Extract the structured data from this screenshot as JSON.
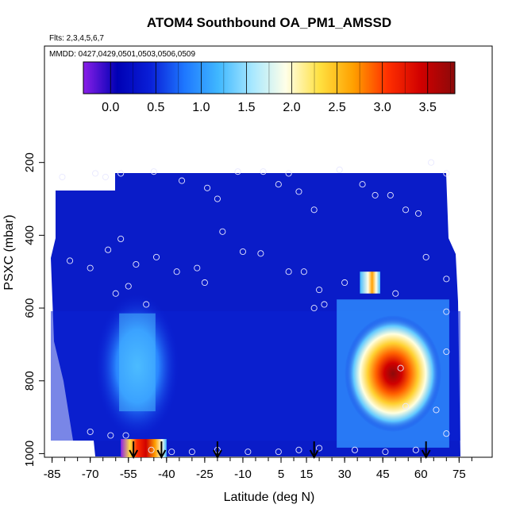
{
  "chart_data": {
    "type": "heatmap",
    "title": "ATOM4 Southbound OA_PM1_AMSSD",
    "flights_label": "Flts: 2,3,4,5,6,7",
    "mmdd_label": "MMDD: 0427,0429,0501,0503,0506,0509",
    "xlabel": "Latitude (deg N)",
    "ylabel": "PSXC (mbar)",
    "x_ticks": [
      "-85",
      "-70",
      "-55",
      "-40",
      "-25",
      "-10",
      "5",
      "15",
      "30",
      "45",
      "60",
      "75"
    ],
    "x_tick_values": [
      -85,
      -70,
      -55,
      -40,
      -25,
      -10,
      5,
      15,
      30,
      45,
      60,
      75
    ],
    "y_ticks": [
      "200",
      "400",
      "600",
      "800",
      "1000"
    ],
    "y_tick_values": [
      200,
      400,
      600,
      800,
      1000
    ],
    "xlim": [
      -88,
      88
    ],
    "ylim": [
      1010,
      -120
    ],
    "y_reversed": true,
    "colorbar": {
      "ticks": [
        "0.0",
        "0.5",
        "1.0",
        "1.5",
        "2.0",
        "2.5",
        "3.0",
        "3.5"
      ],
      "tick_values": [
        0,
        0.5,
        1,
        1.5,
        2,
        2.5,
        3,
        3.5
      ],
      "range": [
        -0.3,
        3.8
      ],
      "colors": [
        "#8a1fe8",
        "#0000b4",
        "#0a20d8",
        "#1e78ff",
        "#40b8ff",
        "#a8e8ff",
        "#ffffe8",
        "#ffe040",
        "#ffa000",
        "#ff3000",
        "#d00000",
        "#8b0a0a"
      ]
    },
    "field": [
      {
        "name": "background",
        "value": 0.05
      },
      {
        "name": "southern-low-level-feature",
        "lat_range": [
          -68,
          -35
        ],
        "p_range": [
          560,
          960
        ],
        "peak": 1.25
      },
      {
        "name": "northern-low-level-plume",
        "lat_range": [
          30,
          68
        ],
        "p_range": [
          620,
          940
        ],
        "peak": 3.6
      },
      {
        "name": "southern-surface-spike",
        "lat_range": [
          -58,
          -40
        ],
        "p_range": [
          960,
          1000
        ],
        "peak": 3.4
      },
      {
        "name": "mid-level-filament",
        "lat_range": [
          36,
          44
        ],
        "p_range": [
          500,
          560
        ],
        "peak": 2.4
      }
    ],
    "profile_arrows_lat": [
      -53,
      -42,
      -20,
      18,
      62
    ],
    "sample_points": [
      {
        "lat": -81,
        "p": 240
      },
      {
        "lat": -68,
        "p": 230
      },
      {
        "lat": -64,
        "p": 240
      },
      {
        "lat": -58,
        "p": 230
      },
      {
        "lat": -45,
        "p": 225
      },
      {
        "lat": -34,
        "p": 250
      },
      {
        "lat": -24,
        "p": 270
      },
      {
        "lat": -20,
        "p": 300
      },
      {
        "lat": -12,
        "p": 225
      },
      {
        "lat": -2,
        "p": 225
      },
      {
        "lat": 4,
        "p": 260
      },
      {
        "lat": 8,
        "p": 230
      },
      {
        "lat": 12,
        "p": 280
      },
      {
        "lat": 18,
        "p": 330
      },
      {
        "lat": 28,
        "p": 220
      },
      {
        "lat": 37,
        "p": 260
      },
      {
        "lat": 42,
        "p": 290
      },
      {
        "lat": 48,
        "p": 290
      },
      {
        "lat": 54,
        "p": 330
      },
      {
        "lat": 59,
        "p": 340
      },
      {
        "lat": 64,
        "p": 200
      },
      {
        "lat": 70,
        "p": 230
      },
      {
        "lat": -78,
        "p": 470
      },
      {
        "lat": -70,
        "p": 490
      },
      {
        "lat": -63,
        "p": 440
      },
      {
        "lat": -58,
        "p": 410
      },
      {
        "lat": -52,
        "p": 480
      },
      {
        "lat": -44,
        "p": 460
      },
      {
        "lat": -36,
        "p": 500
      },
      {
        "lat": -28,
        "p": 490
      },
      {
        "lat": -25,
        "p": 530
      },
      {
        "lat": -18,
        "p": 390
      },
      {
        "lat": -10,
        "p": 445
      },
      {
        "lat": -3,
        "p": 450
      },
      {
        "lat": 8,
        "p": 500
      },
      {
        "lat": 14,
        "p": 500
      },
      {
        "lat": 20,
        "p": 550
      },
      {
        "lat": 30,
        "p": 530
      },
      {
        "lat": 50,
        "p": 560
      },
      {
        "lat": 62,
        "p": 460
      },
      {
        "lat": 70,
        "p": 520
      },
      {
        "lat": -60,
        "p": 560
      },
      {
        "lat": -55,
        "p": 540
      },
      {
        "lat": -48,
        "p": 590
      },
      {
        "lat": 18,
        "p": 600
      },
      {
        "lat": 22,
        "p": 590
      },
      {
        "lat": 70,
        "p": 610
      },
      {
        "lat": -70,
        "p": 940
      },
      {
        "lat": -62,
        "p": 950
      },
      {
        "lat": -56,
        "p": 950
      },
      {
        "lat": -46,
        "p": 990
      },
      {
        "lat": -38,
        "p": 995
      },
      {
        "lat": -30,
        "p": 995
      },
      {
        "lat": -20,
        "p": 990
      },
      {
        "lat": -8,
        "p": 995
      },
      {
        "lat": 4,
        "p": 995
      },
      {
        "lat": 12,
        "p": 990
      },
      {
        "lat": 20,
        "p": 985
      },
      {
        "lat": 34,
        "p": 990
      },
      {
        "lat": 46,
        "p": 995
      },
      {
        "lat": 58,
        "p": 990
      },
      {
        "lat": 70,
        "p": 945
      },
      {
        "lat": 66,
        "p": 880
      },
      {
        "lat": 54,
        "p": 870
      },
      {
        "lat": 52,
        "p": 765
      },
      {
        "lat": 70,
        "p": 720
      }
    ]
  }
}
